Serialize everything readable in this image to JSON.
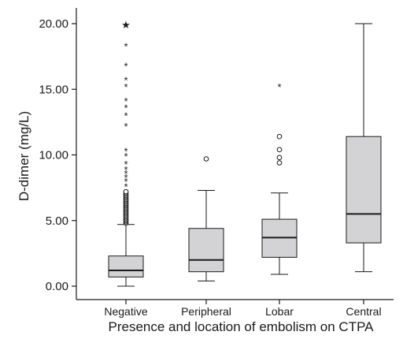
{
  "chart_data": {
    "type": "box",
    "title": "",
    "xlabel": "Presence and location of embolism on CTPA",
    "ylabel": "D-dimer (mg/L)",
    "ylim": [
      0,
      20
    ],
    "yticks": [
      "0.00",
      "5.00",
      "10.00",
      "15.00",
      "20.00"
    ],
    "ytick_values": [
      0,
      5,
      10,
      15,
      20
    ],
    "grid": false,
    "categories": [
      "Negative",
      "Peripheral",
      "Lobar",
      "Central"
    ],
    "box_fill": "#d3d3d5",
    "line_color": "#1a1a1a",
    "boxes": [
      {
        "category": "Negative",
        "whisker_low": 0.0,
        "q1": 0.7,
        "median": 1.2,
        "q3": 2.3,
        "whisker_high": 4.7,
        "outliers_circle": [
          4.8,
          4.9,
          5.0,
          5.1,
          5.2,
          5.3,
          5.4,
          5.5,
          5.6,
          5.7,
          5.8,
          5.9,
          6.0,
          6.1,
          6.2,
          6.3,
          6.4,
          6.5,
          6.6,
          6.7,
          6.8,
          6.9,
          7.0,
          7.1,
          7.2
        ],
        "outliers_star": [
          7.6,
          8.0,
          8.3,
          8.6,
          8.9,
          9.3,
          9.9,
          10.3,
          12.2,
          13.0,
          13.6,
          14.1,
          15.2,
          15.7,
          16.8,
          18.3,
          20.0
        ]
      },
      {
        "category": "Peripheral",
        "whisker_low": 0.4,
        "q1": 1.1,
        "median": 2.0,
        "q3": 4.4,
        "whisker_high": 7.3,
        "outliers_circle": [
          9.7
        ],
        "outliers_star": []
      },
      {
        "category": "Lobar",
        "whisker_low": 0.9,
        "q1": 2.2,
        "median": 3.7,
        "q3": 5.1,
        "whisker_high": 7.1,
        "outliers_circle": [
          9.4,
          9.8,
          10.4,
          11.4
        ],
        "outliers_star": [
          15.2
        ]
      },
      {
        "category": "Central",
        "whisker_low": 1.1,
        "q1": 3.3,
        "median": 5.5,
        "q3": 11.4,
        "whisker_high": 20.0,
        "outliers_circle": [],
        "outliers_star": []
      }
    ]
  }
}
